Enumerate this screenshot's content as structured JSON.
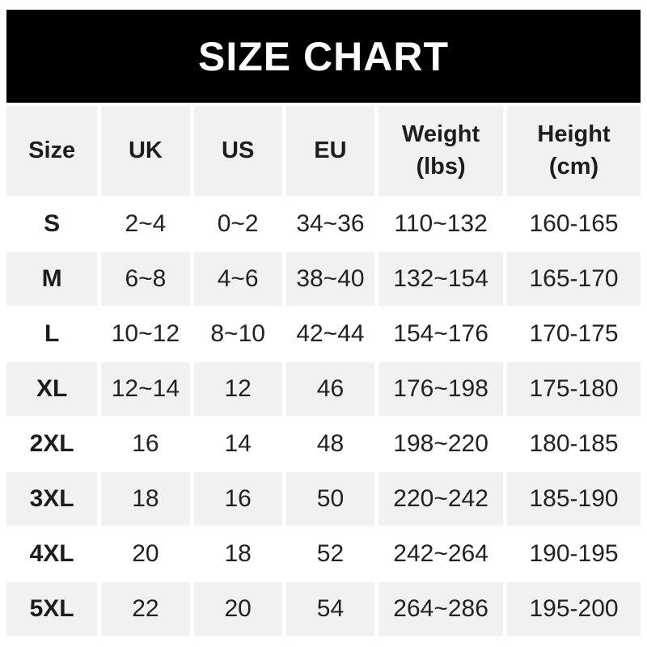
{
  "banner": {
    "title": "SIZE CHART"
  },
  "colors": {
    "banner_bg": "#000000",
    "banner_text": "#ffffff",
    "row_alt_bg": "#f1f1f1",
    "row_bg": "#ffffff",
    "text": "#222222"
  },
  "table": {
    "headers": [
      {
        "line1": "Size"
      },
      {
        "line1": "UK"
      },
      {
        "line1": "US"
      },
      {
        "line1": "EU"
      },
      {
        "line1": "Weight",
        "line2": "(lbs)"
      },
      {
        "line1": "Height",
        "line2": "(cm)"
      }
    ],
    "rows": [
      {
        "size": "S",
        "uk": "2~4",
        "us": "0~2",
        "eu": "34~36",
        "weight": "110~132",
        "height": "160-165"
      },
      {
        "size": "M",
        "uk": "6~8",
        "us": "4~6",
        "eu": "38~40",
        "weight": "132~154",
        "height": "165-170"
      },
      {
        "size": "L",
        "uk": "10~12",
        "us": "8~10",
        "eu": "42~44",
        "weight": "154~176",
        "height": "170-175"
      },
      {
        "size": "XL",
        "uk": "12~14",
        "us": "12",
        "eu": "46",
        "weight": "176~198",
        "height": "175-180"
      },
      {
        "size": "2XL",
        "uk": "16",
        "us": "14",
        "eu": "48",
        "weight": "198~220",
        "height": "180-185"
      },
      {
        "size": "3XL",
        "uk": "18",
        "us": "16",
        "eu": "50",
        "weight": "220~242",
        "height": "185-190"
      },
      {
        "size": "4XL",
        "uk": "20",
        "us": "18",
        "eu": "52",
        "weight": "242~264",
        "height": "190-195"
      },
      {
        "size": "5XL",
        "uk": "22",
        "us": "20",
        "eu": "54",
        "weight": "264~286",
        "height": "195-200"
      }
    ]
  },
  "chart_data": {
    "type": "table",
    "title": "SIZE CHART",
    "columns": [
      "Size",
      "UK",
      "US",
      "EU",
      "Weight (lbs)",
      "Height (cm)"
    ],
    "rows": [
      [
        "S",
        "2~4",
        "0~2",
        "34~36",
        "110~132",
        "160-165"
      ],
      [
        "M",
        "6~8",
        "4~6",
        "38~40",
        "132~154",
        "165-170"
      ],
      [
        "L",
        "10~12",
        "8~10",
        "42~44",
        "154~176",
        "170-175"
      ],
      [
        "XL",
        "12~14",
        "12",
        "46",
        "176~198",
        "175-180"
      ],
      [
        "2XL",
        "16",
        "14",
        "48",
        "198~220",
        "180-185"
      ],
      [
        "3XL",
        "18",
        "16",
        "50",
        "220~242",
        "185-190"
      ],
      [
        "4XL",
        "20",
        "18",
        "52",
        "242~264",
        "190-195"
      ],
      [
        "5XL",
        "22",
        "20",
        "54",
        "264~286",
        "195-200"
      ]
    ]
  }
}
